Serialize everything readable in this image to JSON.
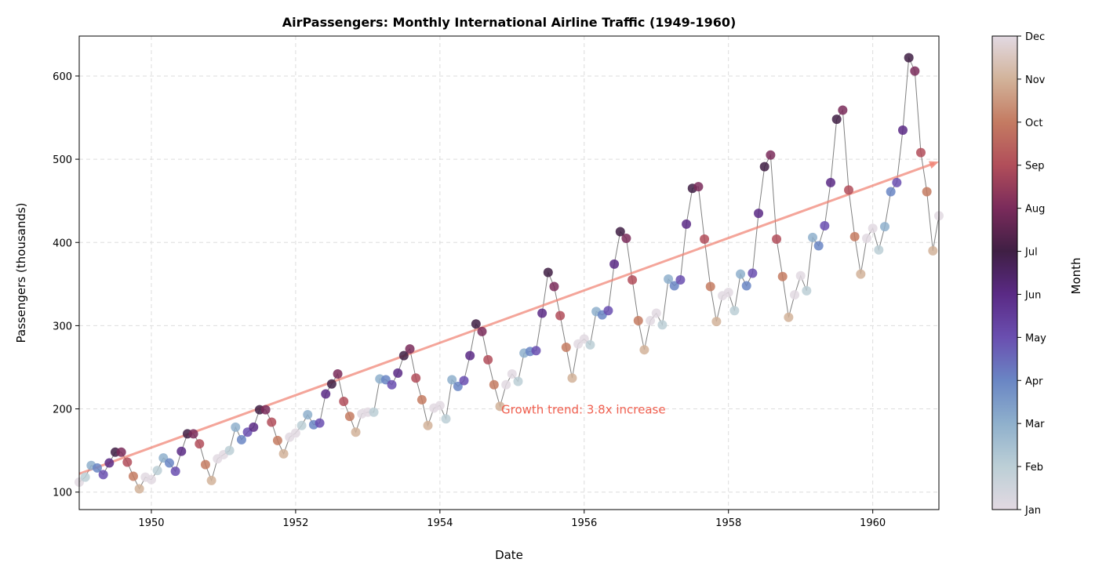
{
  "chart_data": {
    "type": "scatter",
    "title": "AirPassengers: Monthly International Airline Traffic (1949-1960)",
    "xlabel": "Date",
    "ylabel": "Passengers (thousands)",
    "xlim": [
      1949.0,
      1960.917
    ],
    "ylim": [
      79,
      648
    ],
    "xticks": [
      1950,
      1952,
      1954,
      1956,
      1958,
      1960
    ],
    "yticks": [
      100,
      200,
      300,
      400,
      500,
      600
    ],
    "grid": true,
    "start_year": 1949,
    "values": [
      112,
      118,
      132,
      129,
      121,
      135,
      148,
      148,
      136,
      119,
      104,
      118,
      115,
      126,
      141,
      135,
      125,
      149,
      170,
      170,
      158,
      133,
      114,
      140,
      145,
      150,
      178,
      163,
      172,
      178,
      199,
      199,
      184,
      162,
      146,
      166,
      171,
      180,
      193,
      181,
      183,
      218,
      230,
      242,
      209,
      191,
      172,
      194,
      196,
      196,
      236,
      235,
      229,
      243,
      264,
      272,
      237,
      211,
      180,
      201,
      204,
      188,
      235,
      227,
      234,
      264,
      302,
      293,
      259,
      229,
      203,
      229,
      242,
      233,
      267,
      269,
      270,
      315,
      364,
      347,
      312,
      274,
      237,
      278,
      284,
      277,
      317,
      313,
      318,
      374,
      413,
      405,
      355,
      306,
      271,
      306,
      315,
      301,
      356,
      348,
      355,
      422,
      465,
      467,
      404,
      347,
      305,
      336,
      340,
      318,
      362,
      348,
      363,
      435,
      491,
      505,
      404,
      359,
      310,
      337,
      360,
      342,
      406,
      396,
      420,
      472,
      548,
      559,
      463,
      407,
      362,
      405,
      417,
      391,
      419,
      461,
      472,
      535,
      622,
      606,
      508,
      461,
      390,
      432
    ],
    "trend": {
      "start": [
        1949.0,
        122
      ],
      "end": [
        1960.917,
        497
      ],
      "color": "#f08070"
    },
    "annotation": {
      "text": "Growth trend: 3.8x increase",
      "x": 1954.85,
      "y": 200,
      "color": "#f06050"
    },
    "line_color": "#808080",
    "colorbar": {
      "label": "Month",
      "colormap": "twilight",
      "ticks": [
        "Jan",
        "Feb",
        "Mar",
        "Apr",
        "May",
        "Jun",
        "Jul",
        "Aug",
        "Sep",
        "Oct",
        "Nov",
        "Dec"
      ],
      "colors": [
        "#e2d9e2",
        "#bccfd6",
        "#8fb0cc",
        "#6a86c4",
        "#6a4fb0",
        "#5a2a85",
        "#3f1f44",
        "#7a2b5b",
        "#b14e5a",
        "#c47b62",
        "#d2b39a",
        "#e2d9e2"
      ]
    }
  }
}
